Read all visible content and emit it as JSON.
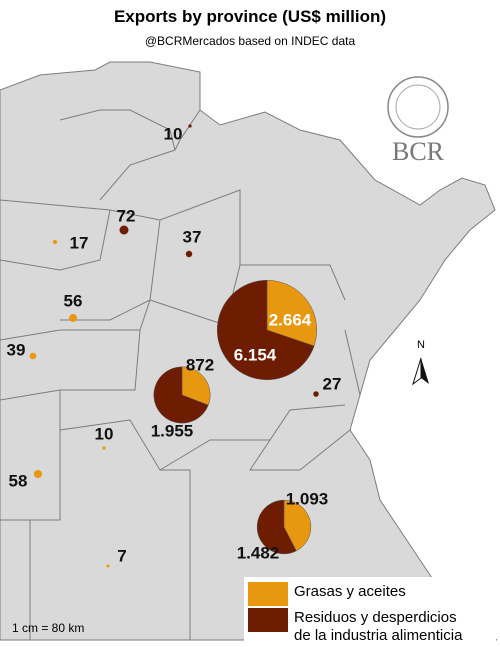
{
  "title": "Exports by province (US$ million)",
  "subtitle": "@BCRMercados based on INDEC data",
  "logo": "BCR",
  "north": "N",
  "scale": "1 cm = 80 km",
  "legend": [
    {
      "label": [
        "Grasas y aceites"
      ],
      "color": "#e8980e"
    },
    {
      "label": [
        "Residuos y desperdicios",
        "de la industria alimenticia"
      ],
      "color": "#6e1c02"
    }
  ],
  "pies": [
    {
      "slices": [
        {
          "value": 2664,
          "label": "2.664"
        },
        {
          "value": 6154,
          "label": "6.154"
        }
      ]
    },
    {
      "slices": [
        {
          "value": 872,
          "label": "872"
        },
        {
          "value": 1955,
          "label": "1.955"
        }
      ]
    },
    {
      "slices": [
        {
          "value": 1093,
          "label": "1.093"
        },
        {
          "value": 1482,
          "label": "1.482"
        }
      ]
    }
  ],
  "dots": [
    {
      "value": 10,
      "legend": 1
    },
    {
      "value": 72,
      "legend": 1
    },
    {
      "value": 17,
      "legend": 0
    },
    {
      "value": 37,
      "legend": 1
    },
    {
      "value": 56,
      "legend": 0
    },
    {
      "value": 39,
      "legend": 0
    },
    {
      "value": 27,
      "legend": 1
    },
    {
      "value": 10,
      "legend": 0
    },
    {
      "value": 58,
      "legend": 0
    },
    {
      "value": 7,
      "legend": 0
    }
  ]
}
